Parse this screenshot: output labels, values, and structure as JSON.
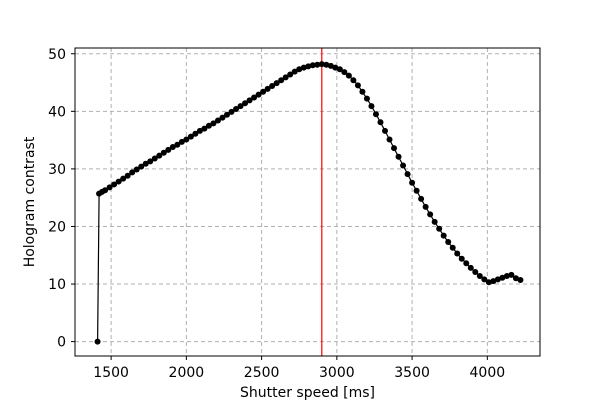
{
  "chart_data": {
    "type": "line",
    "xlabel": "Shutter speed [ms]",
    "ylabel": "Hologram contrast",
    "xlim": [
      1260,
      4350
    ],
    "ylim": [
      -2.5,
      51
    ],
    "xticks": [
      1500,
      2000,
      2500,
      3000,
      3500,
      4000
    ],
    "yticks": [
      0,
      10,
      20,
      30,
      40,
      50
    ],
    "grid": true,
    "vline": 2900,
    "colors": {
      "line": "#000000",
      "marker": "#000000",
      "vline": "#ff0000",
      "grid": "#b0b0b0"
    },
    "series": [
      {
        "x": [
          1410,
          1420,
          1440,
          1460,
          1490,
          1520,
          1550,
          1580,
          1610,
          1640,
          1670,
          1700,
          1730,
          1760,
          1790,
          1820,
          1850,
          1880,
          1910,
          1940,
          1970,
          2000,
          2030,
          2060,
          2090,
          2120,
          2150,
          2180,
          2210,
          2240,
          2270,
          2300,
          2330,
          2360,
          2390,
          2420,
          2450,
          2480,
          2510,
          2540,
          2570,
          2600,
          2630,
          2660,
          2690,
          2720,
          2750,
          2780,
          2810,
          2840,
          2870,
          2900,
          2930,
          2960,
          2990,
          3020,
          3050,
          3080,
          3110,
          3140,
          3170,
          3200,
          3230,
          3260,
          3290,
          3320,
          3350,
          3380,
          3410,
          3440,
          3470,
          3500,
          3530,
          3560,
          3590,
          3620,
          3650,
          3680,
          3710,
          3740,
          3770,
          3800,
          3830,
          3860,
          3890,
          3920,
          3950,
          3980,
          4010,
          4040,
          4070,
          4100,
          4130,
          4160,
          4190,
          4220
        ],
        "y": [
          0,
          25.7,
          26.0,
          26.3,
          26.8,
          27.3,
          27.8,
          28.3,
          28.8,
          29.4,
          29.9,
          30.4,
          30.9,
          31.3,
          31.8,
          32.3,
          32.8,
          33.3,
          33.8,
          34.2,
          34.7,
          35.1,
          35.6,
          36.1,
          36.6,
          37.0,
          37.5,
          37.9,
          38.4,
          38.9,
          39.4,
          39.9,
          40.4,
          40.9,
          41.4,
          41.9,
          42.4,
          42.9,
          43.4,
          43.9,
          44.4,
          44.9,
          45.4,
          45.9,
          46.4,
          46.9,
          47.3,
          47.6,
          47.8,
          48.0,
          48.1,
          48.2,
          48.1,
          47.9,
          47.6,
          47.3,
          46.8,
          46.2,
          45.4,
          44.5,
          43.4,
          42.2,
          40.9,
          39.5,
          38.1,
          36.6,
          35.1,
          33.6,
          32.1,
          30.6,
          29.1,
          27.6,
          26.2,
          24.8,
          23.4,
          22.1,
          20.8,
          19.6,
          18.4,
          17.3,
          16.3,
          15.3,
          14.4,
          13.6,
          12.8,
          12.1,
          11.4,
          10.8,
          10.3,
          10.5,
          10.8,
          11.1,
          11.4,
          11.6,
          11.0,
          10.7
        ]
      }
    ]
  }
}
